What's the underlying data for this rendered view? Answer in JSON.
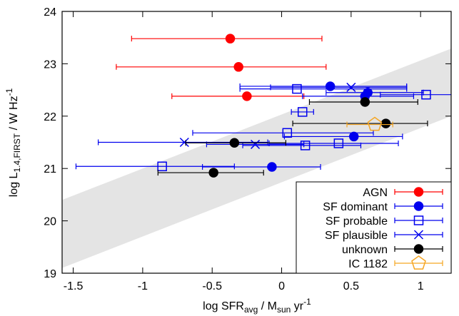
{
  "chart_data": {
    "type": "scatter",
    "x_label": [
      "log SFR",
      "avg",
      " / M",
      "sun",
      " yr",
      "-1"
    ],
    "y_label": [
      "log L",
      "1.4,FIRST",
      " / W Hz",
      "-1"
    ],
    "xlim": [
      -1.58,
      1.22
    ],
    "ylim": [
      19,
      24
    ],
    "xticks": [
      -1.5,
      -1,
      -0.5,
      0,
      0.5,
      1
    ],
    "yticks": [
      19,
      20,
      21,
      22,
      23,
      24
    ],
    "band": {
      "x": [
        -1.58,
        1.22
      ],
      "lower": [
        19.1,
        22.0
      ],
      "upper": [
        20.4,
        23.29
      ],
      "color": "#e4e4e4"
    },
    "legend": "lower right",
    "series": [
      {
        "name": "AGN",
        "color": "#ff0000",
        "marker": "circle",
        "filled": true,
        "x": [
          -0.37,
          -0.31,
          -0.25
        ],
        "y": [
          23.48,
          22.94,
          22.38
        ],
        "xerr": [
          [
            0.71,
            0.66
          ],
          [
            0.88,
            0.63
          ],
          [
            0.54,
            0.41
          ]
        ]
      },
      {
        "name": "SF dominant",
        "color": "#0000ee",
        "marker": "circle",
        "filled": true,
        "x": [
          0.35,
          0.62,
          0.6,
          0.52,
          -0.07
        ],
        "y": [
          22.57,
          22.45,
          22.38,
          21.61,
          21.03
        ],
        "xerr": [
          [
            0.65,
            0.55
          ],
          [
            0.3,
            0.4
          ],
          [
            0.45,
            0.35
          ],
          [
            0.5,
            0.35
          ],
          [
            0.5,
            0.35
          ]
        ]
      },
      {
        "name": "SF probable",
        "color": "#0000ee",
        "marker": "square",
        "filled": false,
        "x": [
          0.11,
          1.04,
          0.15,
          0.04,
          0.17,
          0.41,
          -0.86
        ],
        "y": [
          22.52,
          22.41,
          22.08,
          21.68,
          21.44,
          21.48,
          21.04
        ],
        "xerr": [
          [
            0.41,
            0.79
          ],
          [
            0.33,
            0.3
          ],
          [
            0.08,
            0.08
          ],
          [
            0.68,
            0.62
          ],
          [
            0.45,
            0.4
          ],
          [
            0.5,
            0.43
          ],
          [
            0.62,
            0.52
          ]
        ]
      },
      {
        "name": "SF plausible",
        "color": "#0000ee",
        "marker": "cross",
        "filled": false,
        "x": [
          0.5,
          -0.7,
          -0.19
        ],
        "y": [
          22.55,
          21.5,
          21.46
        ],
        "xerr": [
          [
            0.58,
            0.4
          ],
          [
            0.62,
            0.6
          ],
          [
            0.35,
            0.35
          ]
        ]
      },
      {
        "name": "unknown",
        "color": "#000000",
        "marker": "circle",
        "filled": true,
        "x": [
          0.6,
          0.75,
          -0.34,
          -0.49
        ],
        "y": [
          22.27,
          21.86,
          21.49,
          20.92
        ],
        "xerr": [
          [
            0.4,
            0.38
          ],
          [
            0.67,
            0.3
          ],
          [
            0.35,
            0.37
          ],
          [
            0.4,
            0.36
          ]
        ]
      },
      {
        "name": "IC 1182",
        "color": "#f5a623",
        "marker": "pentagon",
        "filled": false,
        "x": [
          0.67
        ],
        "y": [
          21.84
        ],
        "xerr": [
          [
            0.2,
            0.13
          ]
        ]
      }
    ]
  }
}
